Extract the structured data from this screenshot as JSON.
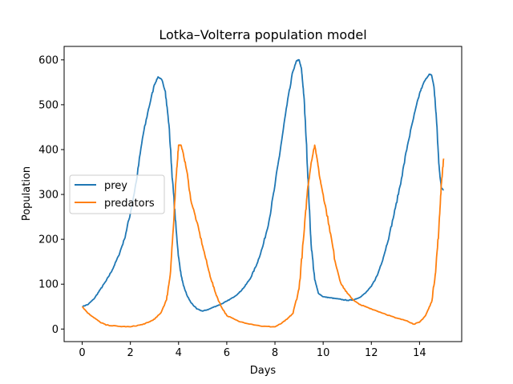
{
  "chart_data": {
    "type": "line",
    "title": "Lotka–Volterra population model",
    "xlabel": "Days",
    "ylabel": "Population",
    "xlim": [
      -0.75,
      15.75
    ],
    "ylim": [
      -28,
      630
    ],
    "xticks": [
      0,
      2,
      4,
      6,
      8,
      10,
      12,
      14
    ],
    "yticks": [
      0,
      100,
      200,
      300,
      400,
      500,
      600
    ],
    "grid": false,
    "legend": "center-left",
    "series": [
      {
        "name": "prey",
        "color": "#1f77b4",
        "x": [
          0,
          0.25,
          0.5,
          0.75,
          1,
          1.25,
          1.5,
          1.75,
          2,
          2.25,
          2.5,
          2.75,
          3,
          3.15,
          3.3,
          3.45,
          3.6,
          3.75,
          3.9,
          4.0,
          4.1,
          4.2,
          4.35,
          4.5,
          4.75,
          5,
          5.25,
          5.5,
          5.75,
          6,
          6.25,
          6.5,
          6.75,
          7,
          7.25,
          7.5,
          7.75,
          8,
          8.25,
          8.5,
          8.75,
          8.9,
          9.0,
          9.1,
          9.2,
          9.3,
          9.4,
          9.5,
          9.65,
          9.8,
          10.0,
          10.25,
          10.5,
          10.75,
          11,
          11.25,
          11.5,
          11.75,
          12,
          12.25,
          12.5,
          12.75,
          13,
          13.25,
          13.5,
          13.75,
          14,
          14.2,
          14.4,
          14.5,
          14.6,
          14.7,
          14.8,
          14.9,
          15.0
        ],
        "values": [
          50,
          55,
          68,
          88,
          108,
          132,
          162,
          200,
          258,
          330,
          425,
          490,
          545,
          562,
          556,
          530,
          455,
          330,
          220,
          160,
          122,
          97,
          75,
          60,
          45,
          40,
          44,
          50,
          55,
          62,
          70,
          80,
          95,
          115,
          145,
          185,
          240,
          320,
          410,
          500,
          575,
          598,
          600,
          580,
          520,
          420,
          300,
          190,
          110,
          80,
          72,
          70,
          68,
          66,
          64,
          65,
          70,
          80,
          95,
          120,
          160,
          210,
          270,
          335,
          410,
          470,
          525,
          552,
          568,
          566,
          540,
          470,
          370,
          315,
          310
        ]
      },
      {
        "name": "predators",
        "color": "#ff7f0e",
        "x": [
          0,
          0.25,
          0.5,
          0.75,
          1,
          1.5,
          2,
          2.5,
          2.75,
          3,
          3.25,
          3.5,
          3.65,
          3.8,
          3.9,
          4.0,
          4.1,
          4.2,
          4.35,
          4.5,
          4.75,
          5,
          5.25,
          5.5,
          5.75,
          6,
          6.5,
          7,
          7.5,
          8,
          8.25,
          8.5,
          8.75,
          9,
          9.2,
          9.35,
          9.5,
          9.65,
          9.75,
          9.85,
          10.0,
          10.25,
          10.5,
          10.75,
          11,
          11.25,
          11.5,
          11.75,
          12,
          12.5,
          13,
          13.5,
          13.75,
          14,
          14.25,
          14.5,
          14.65,
          14.8,
          14.9,
          15.0
        ],
        "values": [
          50,
          35,
          25,
          15,
          9,
          6,
          5,
          10,
          15,
          22,
          35,
          65,
          120,
          240,
          340,
          410,
          410,
          390,
          350,
          290,
          240,
          185,
          130,
          85,
          52,
          30,
          17,
          11,
          6,
          5,
          12,
          22,
          35,
          90,
          210,
          310,
          370,
          410,
          380,
          340,
          300,
          230,
          150,
          100,
          80,
          65,
          55,
          50,
          45,
          35,
          25,
          18,
          11,
          15,
          30,
          60,
          120,
          220,
          320,
          380
        ]
      }
    ]
  }
}
